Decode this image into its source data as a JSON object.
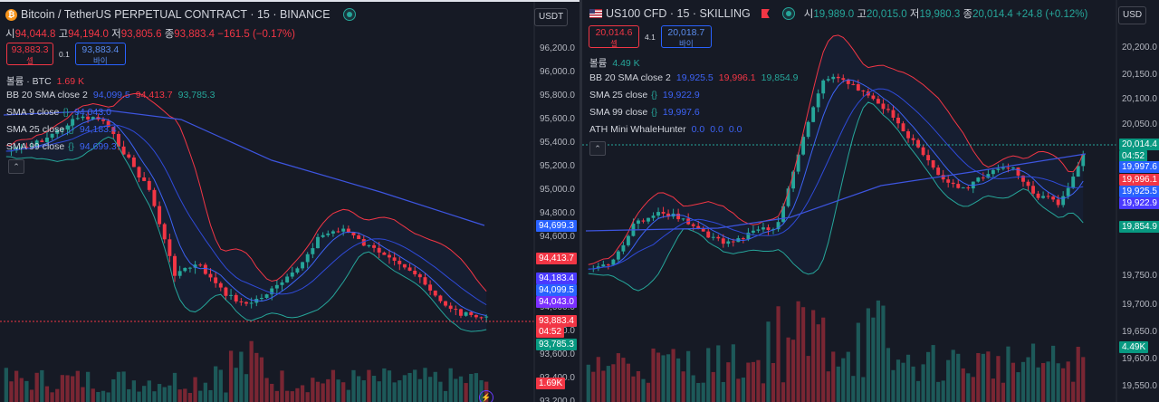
{
  "left": {
    "title": "Bitcoin / TetherUS PERPETUAL CONTRACT · 15 · BINANCE",
    "icon": "bitcoin-coin-icon",
    "currency": "USDT",
    "ohlc": {
      "o_label": "시",
      "o": "94,044.8",
      "h_label": "고",
      "h": "94,194.0",
      "l_label": "저",
      "l": "93,805.6",
      "c_label": "종",
      "c": "93,883.4",
      "change": "−161.5 (−0.17%)"
    },
    "sell": {
      "price": "93,883.3",
      "label": "셀"
    },
    "qty": "0.1",
    "buy": {
      "price": "93,883.4",
      "label": "바이"
    },
    "volume": {
      "label": "볼륨 · BTC",
      "value": "1.69 K"
    },
    "indicators": [
      {
        "label": "BB 20 SMA close 2",
        "values": [
          "94,099.5",
          "94,413.7",
          "93,785.3"
        ],
        "colors": [
          "blue",
          "red",
          "green"
        ]
      },
      {
        "label": "SMA 9 close",
        "values": [
          "94,043.0"
        ],
        "colors": [
          "blue"
        ]
      },
      {
        "label": "SMA 25 close",
        "values": [
          "94,183.4"
        ],
        "colors": [
          "blue"
        ]
      },
      {
        "label": "SMA 99 close",
        "values": [
          "94,699.3"
        ],
        "colors": [
          "blue"
        ]
      }
    ],
    "axis": [
      "96,200.0",
      "96,000.0",
      "95,800.0",
      "95,600.0",
      "95,400.0",
      "95,200.0",
      "95,000.0",
      "94,800.0",
      "94,600.0",
      "94,400.0",
      "94,200.0",
      "94,000.0",
      "93,800.0",
      "93,600.0",
      "93,400.0",
      "93,200.0"
    ],
    "tags": [
      {
        "text": "94,699.3",
        "color": "#2962ff"
      },
      {
        "text": "94,413.7",
        "color": "#f23645"
      },
      {
        "text": "94,183.4",
        "color": "#4a3aff"
      },
      {
        "text": "94,099.5",
        "color": "#2962ff"
      },
      {
        "text": "94,043.0",
        "color": "#7b2fff"
      },
      {
        "text": "93,883.4",
        "color": "#f23645"
      },
      {
        "text": "04:52",
        "color": "#f23645"
      },
      {
        "text": "93,785.3",
        "color": "#089981"
      },
      {
        "text": "1.69K",
        "color": "#f23645"
      }
    ]
  },
  "right": {
    "title": "US100 CFD · 15 · SKILLING",
    "icon": "us-flag-icon",
    "currency": "USD",
    "ohlc": {
      "o_label": "시",
      "o": "19,989.0",
      "h_label": "고",
      "h": "20,015.0",
      "l_label": "저",
      "l": "19,980.3",
      "c_label": "종",
      "c": "20,014.4",
      "change": "+24.8 (+0.12%)"
    },
    "sell": {
      "price": "20,014.6",
      "label": "셀"
    },
    "qty": "4.1",
    "buy": {
      "price": "20,018.7",
      "label": "바이"
    },
    "volume": {
      "label": "볼륨",
      "value": "4.49 K"
    },
    "indicators": [
      {
        "label": "BB 20 SMA close 2",
        "values": [
          "19,925.5",
          "19,996.1",
          "19,854.9"
        ],
        "colors": [
          "blue",
          "red",
          "green"
        ]
      },
      {
        "label": "SMA 25 close",
        "values": [
          "19,922.9"
        ],
        "colors": [
          "blue"
        ]
      },
      {
        "label": "SMA 99 close",
        "values": [
          "19,997.6"
        ],
        "colors": [
          "blue"
        ]
      },
      {
        "label": "ATH Mini WhaleHunter",
        "values": [
          "0.0",
          "0.0",
          "0.0"
        ],
        "colors": [
          "blue",
          "blue",
          "blue"
        ]
      }
    ],
    "axis": [
      "20,200.0",
      "20,150.0",
      "20,100.0",
      "20,050.0",
      "19,750.0",
      "19,700.0",
      "19,650.0",
      "19,600.0",
      "19,550.0"
    ],
    "tags": [
      {
        "text": "20,014.4",
        "color": "#089981"
      },
      {
        "text": "04:52",
        "color": "#089981"
      },
      {
        "text": "19,997.6",
        "color": "#2962ff"
      },
      {
        "text": "19,996.1",
        "color": "#f23645"
      },
      {
        "text": "19,925.5",
        "color": "#2962ff"
      },
      {
        "text": "19,922.9",
        "color": "#4a3aff"
      },
      {
        "text": "19,854.9",
        "color": "#089981"
      },
      {
        "text": "4.49K",
        "color": "#089981"
      }
    ]
  },
  "colors": {
    "up": "#26a69a",
    "down": "#f23645",
    "bb_upper": "#f23645",
    "bb_lower": "#26a69a",
    "sma": "#2962ff"
  }
}
